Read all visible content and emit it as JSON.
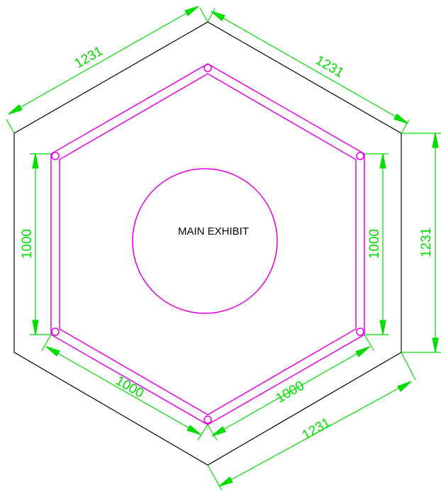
{
  "colors": {
    "background": "#ffffff",
    "outline": "#000000",
    "exhibit": "#e600e6",
    "dimension": "#00dd00",
    "label": "#000000"
  },
  "center_label": "MAIN EXHIBIT",
  "outer_hexagon": {
    "dimensions": {
      "top_left": "1231",
      "top_right": "1231",
      "right": "1231",
      "bottom_right": "1231"
    }
  },
  "inner_hexagon": {
    "dimensions": {
      "left": "1000",
      "right": "1000",
      "bottom_left": "1000",
      "bottom_right": "1000"
    }
  }
}
